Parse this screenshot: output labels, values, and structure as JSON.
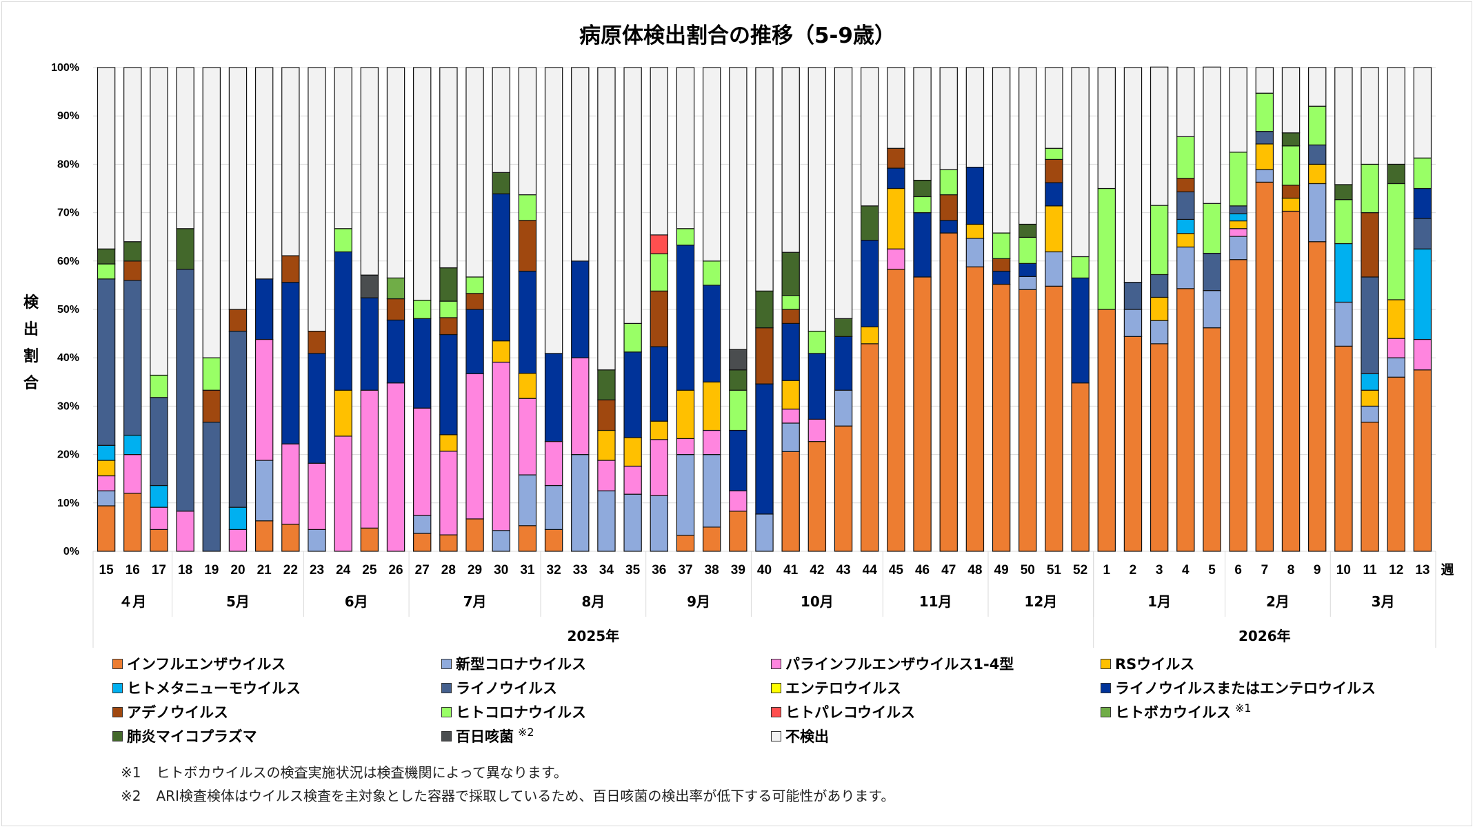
{
  "title": "病原体検出割合の推移（5-9歳）",
  "chart_data": {
    "type": "bar",
    "stacked": true,
    "title": "病原体検出割合の推移（5-9歳）",
    "ylabel": "検出割合",
    "xlabel": "週",
    "ylim": [
      0,
      100
    ],
    "y_ticks": [
      "0%",
      "10%",
      "20%",
      "30%",
      "40%",
      "50%",
      "60%",
      "70%",
      "80%",
      "90%",
      "100%"
    ],
    "grid": true,
    "legend_position": "bottom",
    "categories": [
      "15",
      "16",
      "17",
      "18",
      "19",
      "20",
      "21",
      "22",
      "23",
      "24",
      "25",
      "26",
      "27",
      "28",
      "29",
      "30",
      "31",
      "32",
      "33",
      "34",
      "35",
      "36",
      "37",
      "38",
      "39",
      "40",
      "41",
      "42",
      "43",
      "44",
      "45",
      "46",
      "47",
      "48",
      "49",
      "50",
      "51",
      "52",
      "1",
      "2",
      "3",
      "4",
      "5",
      "6",
      "7",
      "8",
      "9",
      "10",
      "11",
      "12",
      "13"
    ],
    "months": [
      {
        "label": "４月",
        "weeks": 3
      },
      {
        "label": "5月",
        "weeks": 5
      },
      {
        "label": "6月",
        "weeks": 4
      },
      {
        "label": "7月",
        "weeks": 5
      },
      {
        "label": "8月",
        "weeks": 4
      },
      {
        "label": "9月",
        "weeks": 4
      },
      {
        "label": "10月",
        "weeks": 5
      },
      {
        "label": "11月",
        "weeks": 4
      },
      {
        "label": "12月",
        "weeks": 4
      },
      {
        "label": "1月",
        "weeks": 5
      },
      {
        "label": "2月",
        "weeks": 4
      },
      {
        "label": "3月",
        "weeks": 4
      }
    ],
    "years": [
      {
        "label": "2025年",
        "weeks": 38
      },
      {
        "label": "2026年",
        "weeks": 13
      }
    ],
    "series": [
      {
        "name": "インフルエンザウイルス",
        "color": "#ED7D31",
        "values": [
          9.4,
          12,
          4.5,
          0,
          0,
          0,
          6.3,
          5.6,
          0,
          0,
          4.8,
          0,
          3.7,
          3.4,
          6.7,
          0,
          5.3,
          4.5,
          0,
          0,
          0,
          0,
          3.3,
          5,
          8.3,
          0,
          20.6,
          22.7,
          25.9,
          42.9,
          58.3,
          56.7,
          65.8,
          58.8,
          55.2,
          54.1,
          54.8,
          34.8,
          50,
          44.4,
          42.9,
          54.3,
          46.2,
          60.3,
          76.3,
          70.3,
          64,
          42.4,
          26.7,
          36,
          37.5
        ]
      },
      {
        "name": "新型コロナウイルス",
        "color": "#8FAADC",
        "values": [
          3.1,
          0,
          0,
          0,
          0,
          0,
          12.5,
          0,
          4.5,
          0,
          0,
          0,
          3.7,
          0,
          0,
          4.3,
          10.5,
          9.1,
          20,
          12.5,
          11.8,
          11.5,
          16.7,
          15,
          0,
          7.7,
          5.9,
          0,
          7.4,
          0,
          0,
          0,
          0,
          5.9,
          0,
          2.7,
          7.1,
          0,
          0,
          5.6,
          4.8,
          8.6,
          7.7,
          4.8,
          2.6,
          0,
          12,
          9.1,
          3.3,
          4,
          0
        ]
      },
      {
        "name": "パラインフルエンザウイルス1-4型",
        "color": "#FF85DF",
        "values": [
          3.1,
          8,
          4.6,
          8.3,
          0,
          4.5,
          25,
          16.6,
          13.7,
          23.8,
          28.5,
          34.8,
          22.2,
          17.3,
          30,
          34.8,
          15.8,
          9.1,
          20,
          6.3,
          5.8,
          11.6,
          3.3,
          5,
          4.2,
          0,
          2.9,
          4.6,
          0,
          0,
          4.2,
          0,
          0,
          0,
          0,
          0,
          0,
          0,
          0,
          0,
          0,
          0,
          0,
          1.6,
          0,
          0,
          0,
          0,
          0,
          4,
          6.3
        ]
      },
      {
        "name": "RSウイルス",
        "color": "#FFC000",
        "values": [
          3.2,
          0,
          0,
          0,
          0,
          0,
          0,
          0,
          0,
          9.5,
          0,
          0,
          0,
          3.4,
          0,
          4.4,
          5.2,
          0,
          0,
          6.2,
          5.9,
          3.8,
          10,
          10,
          0,
          0,
          5.9,
          0,
          0,
          3.5,
          12.5,
          0,
          0,
          2.9,
          0,
          0,
          9.5,
          0,
          0,
          0,
          4.8,
          2.8,
          0,
          1.6,
          5.3,
          2.7,
          4,
          0,
          3.3,
          8,
          0
        ]
      },
      {
        "name": "ヒトメタニューモウイルス",
        "color": "#00B0F0",
        "values": [
          3.1,
          4,
          4.5,
          0,
          0,
          4.6,
          0,
          0,
          0,
          0,
          0,
          0,
          0,
          0,
          0,
          0,
          0,
          0,
          0,
          0,
          0,
          0,
          0,
          0,
          0,
          0,
          0,
          0,
          0,
          0,
          0,
          0,
          0,
          0,
          0,
          0,
          0,
          0,
          0,
          0,
          0,
          2.9,
          0,
          1.5,
          0,
          0,
          0,
          12.1,
          3.4,
          0,
          18.7
        ]
      },
      {
        "name": "ライノウイルス",
        "color": "#44608E",
        "values": [
          34.4,
          32,
          18.2,
          50,
          26.7,
          36.4,
          0,
          0,
          0,
          0,
          0,
          0,
          0,
          0,
          0,
          0,
          0,
          0,
          0,
          0,
          0,
          0,
          0,
          0,
          0,
          0,
          0,
          0,
          0,
          0,
          0,
          0,
          0,
          0,
          0,
          0,
          0,
          0,
          0,
          5.6,
          4.7,
          5.7,
          7.7,
          1.6,
          2.6,
          0,
          4,
          0,
          20,
          0,
          6.3
        ]
      },
      {
        "name": "エンテロウイルス",
        "color": "#FFFF00",
        "values": [
          0,
          0,
          0,
          0,
          0,
          0,
          0,
          0,
          0,
          0,
          0,
          0,
          0,
          0,
          0,
          0,
          0,
          0,
          0,
          0,
          0,
          0,
          0,
          0,
          0,
          0,
          0,
          0,
          0,
          0,
          0,
          0,
          0,
          0,
          0,
          0,
          0,
          0,
          0,
          0,
          0,
          0,
          0,
          0,
          0,
          0,
          0,
          0,
          0,
          0,
          0
        ]
      },
      {
        "name": "ライノウイルスまたはエンテロウイルス",
        "color": "#003399",
        "values": [
          0,
          0,
          0,
          0,
          0,
          0,
          12.5,
          33.4,
          22.7,
          28.6,
          19.1,
          13,
          18.5,
          20.7,
          13.3,
          30.4,
          21.1,
          18.2,
          20,
          0,
          17.7,
          15.4,
          30,
          20,
          12.5,
          26.9,
          11.8,
          13.6,
          11.1,
          17.9,
          4.2,
          13.3,
          2.6,
          11.8,
          2.7,
          2.7,
          4.8,
          21.7,
          0,
          0,
          0,
          0,
          0,
          0,
          0,
          0,
          0,
          0,
          0,
          0,
          6.2
        ]
      },
      {
        "name": "アデノウイルス",
        "color": "#A0480F",
        "values": [
          0,
          4,
          0,
          0,
          6.6,
          4.5,
          0,
          5.5,
          4.6,
          0,
          0,
          4.4,
          0,
          3.5,
          3.3,
          0,
          10.5,
          0,
          0,
          6.3,
          0,
          11.5,
          0,
          0,
          0,
          11.6,
          2.9,
          0,
          0,
          0,
          4.1,
          0,
          5.3,
          0,
          2.6,
          0,
          4.8,
          0,
          0,
          0,
          0,
          2.8,
          0,
          0,
          0,
          2.7,
          0,
          0,
          13.3,
          0,
          0
        ]
      },
      {
        "name": "ヒトコロナウイルス",
        "color": "#99FF66",
        "values": [
          3.1,
          0,
          4.6,
          0,
          6.7,
          0,
          0,
          0,
          0,
          4.8,
          0,
          0,
          3.8,
          3.4,
          3.4,
          0,
          5.3,
          0,
          0,
          0,
          5.9,
          7.7,
          3.4,
          5,
          8.3,
          0,
          2.9,
          4.6,
          0,
          0,
          0,
          3.3,
          5.2,
          0,
          5.3,
          5.4,
          2.3,
          4.4,
          25,
          0,
          14.3,
          8.6,
          10.3,
          11.1,
          7.9,
          8.1,
          8,
          9.1,
          10,
          24,
          6.3
        ]
      },
      {
        "name": "ヒトパレコウイルス",
        "color": "#FF4F4F",
        "values": [
          0,
          0,
          0,
          0,
          0,
          0,
          0,
          0,
          0,
          0,
          0,
          0,
          0,
          0,
          0,
          0,
          0,
          0,
          0,
          0,
          0,
          3.9,
          0,
          0,
          0,
          0,
          0,
          0,
          0,
          0,
          0,
          0,
          0,
          0,
          0,
          0,
          0,
          0,
          0,
          0,
          0,
          0,
          0,
          0,
          0,
          0,
          0,
          0,
          0,
          0,
          0
        ]
      },
      {
        "name": "ヒトボカウイルス",
        "note": "※1",
        "color": "#70AD47",
        "values": [
          0,
          0,
          0,
          0,
          0,
          0,
          0,
          0,
          0,
          0,
          0,
          4.3,
          0,
          0,
          0,
          0,
          0,
          0,
          0,
          0,
          0,
          0,
          0,
          0,
          0,
          0,
          0,
          0,
          0,
          0,
          0,
          0,
          0,
          0,
          0,
          0,
          0,
          0,
          0,
          0,
          0,
          0,
          0,
          0,
          0,
          0,
          0,
          0,
          0,
          0,
          0
        ]
      },
      {
        "name": "肺炎マイコプラズマ",
        "color": "#43682B",
        "values": [
          3.1,
          4,
          0,
          8.4,
          0,
          0,
          0,
          0,
          0,
          0,
          0,
          0,
          0,
          6.9,
          0,
          4.4,
          0,
          0,
          0,
          6.2,
          0,
          0,
          0,
          0,
          4.2,
          7.6,
          8.9,
          0,
          3.7,
          7.1,
          0,
          3.4,
          0,
          0,
          0,
          2.7,
          0,
          0,
          0,
          0,
          0,
          0,
          0,
          0,
          0,
          2.7,
          0,
          3.1,
          0,
          4,
          0
        ]
      },
      {
        "name": "百日咳菌",
        "note": "※2",
        "color": "#4A4D4F",
        "values": [
          0,
          0,
          0,
          0,
          0,
          0,
          0,
          0,
          0,
          0,
          4.7,
          0,
          0,
          0,
          0,
          0,
          0,
          0,
          0,
          0,
          0,
          0,
          0,
          0,
          4.2,
          0,
          0,
          0,
          0,
          0,
          0,
          0,
          0,
          0,
          0,
          0,
          0,
          0,
          0,
          0,
          0,
          0,
          0,
          0,
          0,
          0,
          0,
          0,
          0,
          0,
          0
        ]
      },
      {
        "name": "不検出",
        "color": "#F2F2F2",
        "values": [
          37.5,
          36,
          63.6,
          33.3,
          60,
          50,
          43.7,
          38.9,
          54.5,
          33.3,
          42.9,
          43.5,
          48.1,
          41.4,
          43.3,
          21.7,
          26.3,
          59.1,
          40,
          62.5,
          52.9,
          34.6,
          33.3,
          40,
          58.3,
          46.2,
          38.2,
          54.5,
          51.9,
          28.6,
          16.7,
          23.3,
          21.1,
          20.6,
          34.2,
          32.4,
          16.7,
          39.1,
          25,
          44.4,
          28.6,
          14.3,
          28.2,
          17.5,
          5.3,
          13.5,
          8,
          24.2,
          20,
          20,
          18.7
        ]
      }
    ]
  },
  "legend_columns": [
    [
      "インフルエンザウイルス",
      "ヒトメタニューモウイルス",
      "アデノウイルス",
      "肺炎マイコプラズマ"
    ],
    [
      "新型コロナウイルス",
      "ライノウイルス",
      "ヒトコロナウイルス",
      "百日咳菌"
    ],
    [
      "パラインフルエンザウイルス1-4型",
      "エンテロウイルス",
      "ヒトパレコウイルス",
      "不検出"
    ],
    [
      "RSウイルス",
      "ライノウイルスまたはエンテロウイルス",
      "ヒトボカウイルス"
    ]
  ],
  "notes": [
    {
      "mark": "※1",
      "text": "ヒトボカウイルスの検査実施状況は検査機関によって異なります。"
    },
    {
      "mark": "※2",
      "text": "ARI検査検体はウイルス検査を主対象とした容器で採取しているため、百日咳菌の検出率が低下する可能性があります。"
    }
  ]
}
